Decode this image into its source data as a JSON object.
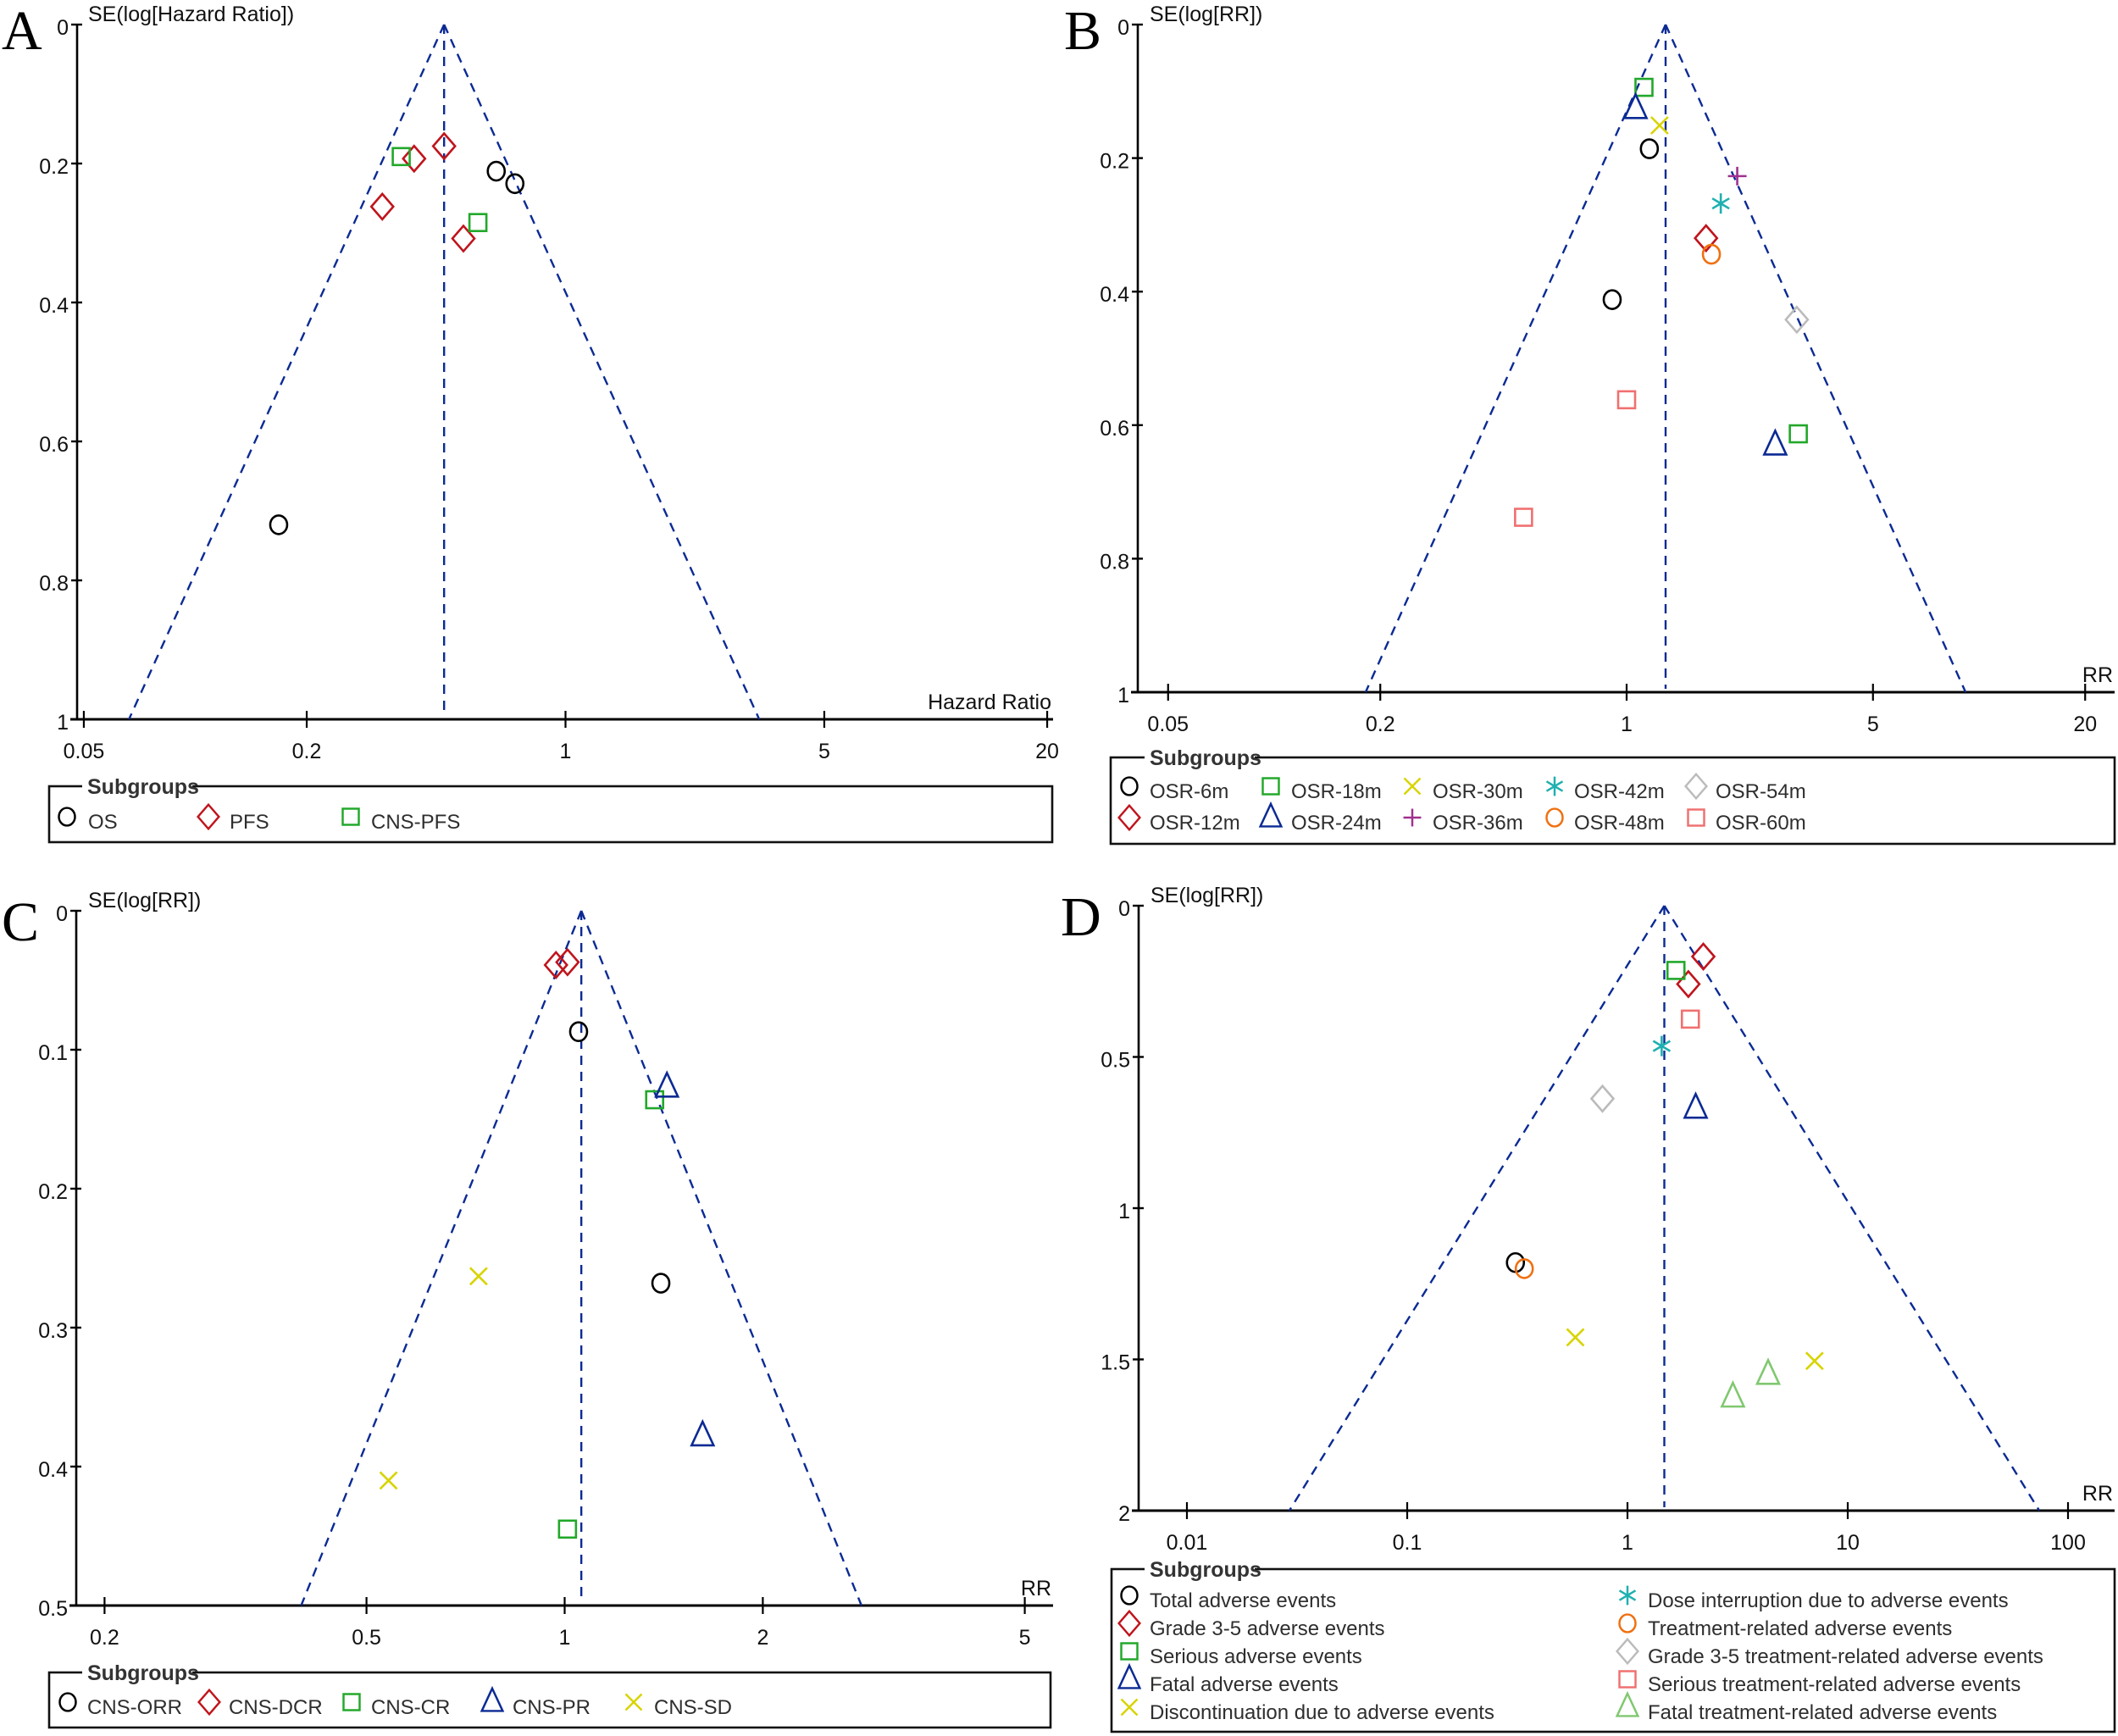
{
  "colors": {
    "funnel": "#0b2a94",
    "axis": "#000000"
  },
  "chart_data": [
    {
      "panel": "A",
      "type": "scatter",
      "subtype": "funnel",
      "ylabel": "SE(log[Hazard Ratio])",
      "xlabel": "Hazard Ratio",
      "xscale": "log",
      "xticks": [
        0.05,
        0.2,
        1,
        5,
        20
      ],
      "xtick_labels": [
        "0.05",
        "0.2",
        "1",
        "5",
        "20"
      ],
      "yticks": [
        0,
        0.2,
        0.4,
        0.6,
        0.8,
        1
      ],
      "ytick_labels": [
        "0",
        "0.2",
        "0.4",
        "0.6",
        "0.8",
        "1"
      ],
      "ylim": [
        0,
        1
      ],
      "y_inverted": true,
      "pooled_estimate": 0.47,
      "legend_title": "Subgroups",
      "legend_position": "bottom",
      "series": [
        {
          "name": "OS",
          "marker": "circle",
          "color": "#000000",
          "points": [
            [
              0.65,
              0.211
            ],
            [
              0.73,
              0.229
            ],
            [
              0.168,
              0.72
            ]
          ]
        },
        {
          "name": "PFS",
          "marker": "diamond",
          "color": "#c0141c",
          "points": [
            [
              0.47,
              0.175
            ],
            [
              0.39,
              0.193
            ],
            [
              0.32,
              0.262
            ],
            [
              0.53,
              0.308
            ]
          ]
        },
        {
          "name": "CNS-PFS",
          "marker": "square",
          "color": "#22a82a",
          "points": [
            [
              0.36,
              0.19
            ],
            [
              0.58,
              0.285
            ]
          ]
        }
      ]
    },
    {
      "panel": "B",
      "type": "scatter",
      "subtype": "funnel",
      "ylabel": "SE(log[RR])",
      "xlabel": "RR",
      "xscale": "log",
      "xticks": [
        0.05,
        0.2,
        1,
        5,
        20
      ],
      "xtick_labels": [
        "0.05",
        "0.2",
        "1",
        "5",
        "20"
      ],
      "yticks": [
        0,
        0.2,
        0.4,
        0.6,
        0.8,
        1
      ],
      "ytick_labels": [
        "0",
        "0.2",
        "0.4",
        "0.6",
        "0.8",
        "1"
      ],
      "ylim": [
        0,
        1
      ],
      "y_inverted": true,
      "pooled_estimate": 1.29,
      "legend_title": "Subgroups",
      "legend_position": "bottom",
      "series": [
        {
          "name": "OSR-6m",
          "marker": "circle",
          "color": "#000000",
          "points": [
            [
              1.16,
              0.186
            ],
            [
              0.91,
              0.412
            ]
          ]
        },
        {
          "name": "OSR-12m",
          "marker": "diamond",
          "color": "#c0141c",
          "points": [
            [
              1.68,
              0.32
            ]
          ]
        },
        {
          "name": "OSR-18m",
          "marker": "square",
          "color": "#22a82a",
          "points": [
            [
              1.12,
              0.094
            ],
            [
              3.07,
              0.613
            ]
          ]
        },
        {
          "name": "OSR-24m",
          "marker": "triangle",
          "color": "#0b2a94",
          "points": [
            [
              1.06,
              0.126
            ],
            [
              2.64,
              0.63
            ]
          ]
        },
        {
          "name": "OSR-30m",
          "marker": "x",
          "color": "#d8d400",
          "points": [
            [
              1.24,
              0.151
            ]
          ]
        },
        {
          "name": "OSR-36m",
          "marker": "plus",
          "color": "#a0308f",
          "points": [
            [
              2.06,
              0.227
            ]
          ]
        },
        {
          "name": "OSR-42m",
          "marker": "asterisk",
          "color": "#1fb0b0",
          "points": [
            [
              1.85,
              0.268
            ]
          ]
        },
        {
          "name": "OSR-48m",
          "marker": "circle",
          "color": "#f07010",
          "points": [
            [
              1.74,
              0.344
            ]
          ]
        },
        {
          "name": "OSR-54m",
          "marker": "diamond",
          "color": "#bbbbbb",
          "points": [
            [
              3.04,
              0.442
            ]
          ]
        },
        {
          "name": "OSR-60m",
          "marker": "square",
          "color": "#f07070",
          "points": [
            [
              1.0,
              0.562
            ],
            [
              0.51,
              0.738
            ]
          ]
        }
      ]
    },
    {
      "panel": "C",
      "type": "scatter",
      "subtype": "funnel",
      "ylabel": "SE(log[RR])",
      "xlabel": "RR",
      "xscale": "log",
      "xticks": [
        0.2,
        0.5,
        1,
        2,
        5
      ],
      "xtick_labels": [
        "0.2",
        "0.5",
        "1",
        "2",
        "5"
      ],
      "yticks": [
        0,
        0.1,
        0.2,
        0.3,
        0.4,
        0.5
      ],
      "ytick_labels": [
        "0",
        "0.1",
        "0.2",
        "0.3",
        "0.4",
        "0.5"
      ],
      "ylim": [
        0,
        0.5
      ],
      "y_inverted": true,
      "pooled_estimate": 1.06,
      "legend_title": "Subgroups",
      "legend_position": "bottom",
      "series": [
        {
          "name": "CNS-ORR",
          "marker": "circle",
          "color": "#000000",
          "points": [
            [
              1.05,
              0.087
            ],
            [
              1.4,
              0.268
            ]
          ]
        },
        {
          "name": "CNS-DCR",
          "marker": "diamond",
          "color": "#c0141c",
          "points": [
            [
              0.97,
              0.039
            ],
            [
              1.01,
              0.037
            ]
          ]
        },
        {
          "name": "CNS-CR",
          "marker": "square",
          "color": "#22a82a",
          "points": [
            [
              1.37,
              0.136
            ],
            [
              1.01,
              0.445
            ]
          ]
        },
        {
          "name": "CNS-PR",
          "marker": "triangle",
          "color": "#0b2a94",
          "points": [
            [
              1.43,
              0.127
            ],
            [
              1.62,
              0.378
            ]
          ]
        },
        {
          "name": "CNS-SD",
          "marker": "x",
          "color": "#d8d400",
          "points": [
            [
              0.74,
              0.263
            ],
            [
              0.54,
              0.41
            ]
          ]
        }
      ]
    },
    {
      "panel": "D",
      "type": "scatter",
      "subtype": "funnel",
      "ylabel": "SE(log[RR])",
      "xlabel": "RR",
      "xscale": "log",
      "xticks": [
        0.01,
        0.1,
        1,
        10,
        100
      ],
      "xtick_labels": [
        "0.01",
        "0.1",
        "1",
        "10",
        "100"
      ],
      "yticks": [
        0,
        0.5,
        1,
        1.5,
        2
      ],
      "ytick_labels": [
        "0",
        "0.5",
        "1",
        "1.5",
        "2"
      ],
      "ylim": [
        0,
        2
      ],
      "y_inverted": true,
      "pooled_estimate": 1.47,
      "legend_title": "Subgroups",
      "legend_position": "bottom",
      "series": [
        {
          "name": "Total adverse events",
          "marker": "circle",
          "color": "#000000",
          "points": [
            [
              0.31,
              1.18
            ]
          ]
        },
        {
          "name": "Grade 3-5 adverse events",
          "marker": "diamond",
          "color": "#c0141c",
          "points": [
            [
              2.21,
              0.168
            ],
            [
              1.89,
              0.259
            ]
          ]
        },
        {
          "name": "Serious adverse events",
          "marker": "square",
          "color": "#22a82a",
          "points": [
            [
              1.66,
              0.214
            ]
          ]
        },
        {
          "name": "Fatal adverse events",
          "marker": "triangle",
          "color": "#0b2a94",
          "points": [
            [
              2.04,
              0.67
            ]
          ]
        },
        {
          "name": "Discontinuation due to adverse events",
          "marker": "x",
          "color": "#d8d400",
          "points": [
            [
              0.58,
              1.427
            ],
            [
              7.07,
              1.505
            ]
          ]
        },
        {
          "name": "Dose interruption due to adverse events",
          "marker": "asterisk",
          "color": "#1fb0b0",
          "points": [
            [
              1.43,
              0.464
            ]
          ]
        },
        {
          "name": "Treatment-related adverse events",
          "marker": "circle",
          "color": "#f07010",
          "points": [
            [
              0.34,
              1.2
            ]
          ]
        },
        {
          "name": "Grade 3-5 treatment-related adverse events",
          "marker": "diamond",
          "color": "#bbbbbb",
          "points": [
            [
              0.77,
              0.638
            ]
          ]
        },
        {
          "name": "Serious treatment-related adverse events",
          "marker": "square",
          "color": "#f07070",
          "points": [
            [
              1.93,
              0.375
            ]
          ]
        },
        {
          "name": "Fatal treatment-related adverse events",
          "marker": "triangle",
          "color": "#80c870",
          "points": [
            [
              4.35,
              1.55
            ],
            [
              3.01,
              1.625
            ]
          ]
        }
      ]
    }
  ]
}
